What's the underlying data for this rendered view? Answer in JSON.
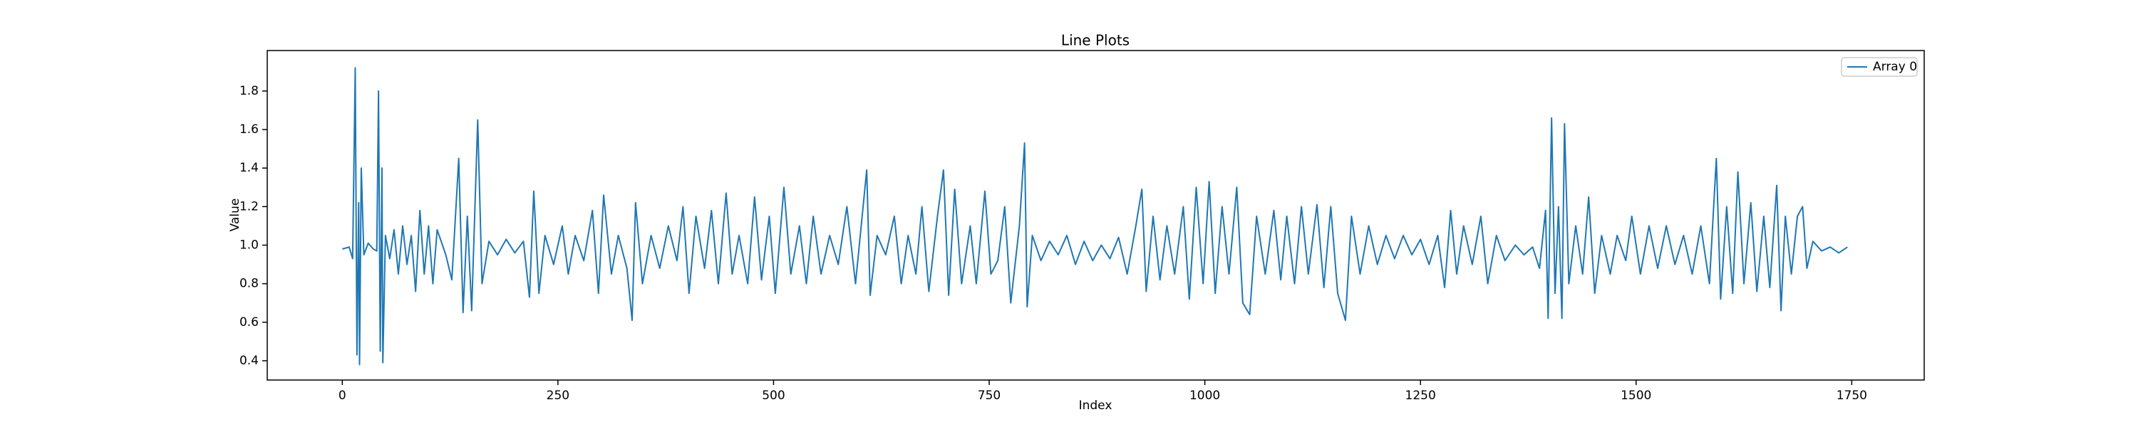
{
  "chart_data": {
    "type": "line",
    "title": "Line Plots",
    "x_label": "Index",
    "y_label": "Value",
    "legend": "upper right",
    "grid": false,
    "xlim": [
      -87,
      1834
    ],
    "ylim": [
      0.3,
      2.01
    ],
    "xticks": [
      0,
      250,
      500,
      750,
      1000,
      1250,
      1500,
      1750
    ],
    "yticks": [
      0.4,
      0.6,
      0.8,
      {
        "value": 1,
        "label": "1.0"
      },
      1.2,
      1.4,
      1.6,
      1.8
    ],
    "x": [
      0,
      8,
      12,
      15,
      17,
      19,
      20,
      22,
      25,
      30,
      36,
      40,
      42,
      44,
      46,
      47,
      50,
      55,
      60,
      65,
      70,
      75,
      80,
      85,
      90,
      95,
      100,
      105,
      110,
      120,
      127,
      135,
      140,
      145,
      150,
      157,
      162,
      170,
      180,
      190,
      200,
      210,
      217,
      222,
      228,
      235,
      245,
      255,
      262,
      270,
      280,
      290,
      297,
      303,
      312,
      320,
      330,
      336,
      340,
      348,
      358,
      368,
      378,
      388,
      395,
      402,
      410,
      420,
      428,
      436,
      445,
      452,
      460,
      470,
      478,
      486,
      495,
      502,
      512,
      520,
      530,
      538,
      546,
      555,
      565,
      575,
      585,
      595,
      608,
      612,
      620,
      630,
      640,
      648,
      656,
      665,
      672,
      680,
      690,
      697,
      703,
      710,
      718,
      728,
      735,
      745,
      752,
      760,
      768,
      775,
      785,
      791,
      794,
      800,
      810,
      820,
      830,
      840,
      850,
      860,
      870,
      880,
      890,
      900,
      910,
      920,
      927,
      932,
      940,
      948,
      956,
      965,
      975,
      982,
      990,
      998,
      1005,
      1012,
      1020,
      1028,
      1037,
      1044,
      1052,
      1060,
      1070,
      1080,
      1088,
      1095,
      1104,
      1112,
      1120,
      1130,
      1138,
      1146,
      1154,
      1163,
      1170,
      1180,
      1190,
      1200,
      1210,
      1220,
      1230,
      1240,
      1250,
      1260,
      1270,
      1278,
      1285,
      1292,
      1300,
      1310,
      1320,
      1328,
      1338,
      1348,
      1360,
      1370,
      1380,
      1388,
      1395,
      1398,
      1402,
      1406,
      1410,
      1414,
      1417,
      1422,
      1430,
      1438,
      1445,
      1452,
      1460,
      1470,
      1478,
      1488,
      1495,
      1505,
      1515,
      1525,
      1535,
      1545,
      1555,
      1565,
      1575,
      1585,
      1593,
      1598,
      1605,
      1612,
      1618,
      1625,
      1633,
      1640,
      1648,
      1655,
      1663,
      1668,
      1673,
      1680,
      1687,
      1693,
      1698,
      1705,
      1715,
      1725,
      1735,
      1745
    ],
    "series": [
      {
        "name": "Array 0",
        "color": "#1f77b4",
        "values": [
          0.98,
          0.99,
          0.93,
          1.92,
          0.43,
          1.22,
          0.38,
          1.4,
          0.95,
          1.01,
          0.98,
          0.97,
          1.8,
          0.45,
          1.4,
          0.39,
          1.05,
          0.93,
          1.08,
          0.85,
          1.1,
          0.9,
          1.05,
          0.76,
          1.18,
          0.85,
          1.1,
          0.8,
          1.08,
          0.95,
          0.82,
          1.45,
          0.65,
          1.15,
          0.66,
          1.65,
          0.8,
          1.02,
          0.95,
          1.03,
          0.96,
          1.02,
          0.73,
          1.28,
          0.75,
          1.05,
          0.9,
          1.1,
          0.85,
          1.05,
          0.92,
          1.18,
          0.75,
          1.26,
          0.85,
          1.05,
          0.88,
          0.61,
          1.22,
          0.8,
          1.05,
          0.88,
          1.1,
          0.92,
          1.2,
          0.75,
          1.15,
          0.88,
          1.18,
          0.8,
          1.27,
          0.85,
          1.05,
          0.8,
          1.25,
          0.82,
          1.15,
          0.75,
          1.3,
          0.85,
          1.1,
          0.8,
          1.15,
          0.85,
          1.05,
          0.9,
          1.2,
          0.8,
          1.39,
          0.74,
          1.05,
          0.95,
          1.15,
          0.8,
          1.05,
          0.85,
          1.2,
          0.76,
          1.15,
          1.39,
          0.74,
          1.29,
          0.8,
          1.1,
          0.8,
          1.28,
          0.85,
          0.92,
          1.2,
          0.7,
          1.1,
          1.53,
          0.68,
          1.05,
          0.92,
          1.02,
          0.95,
          1.05,
          0.9,
          1.02,
          0.92,
          1.0,
          0.93,
          1.04,
          0.85,
          1.1,
          1.29,
          0.76,
          1.15,
          0.82,
          1.1,
          0.85,
          1.2,
          0.72,
          1.3,
          0.8,
          1.33,
          0.75,
          1.2,
          0.85,
          1.3,
          0.7,
          0.64,
          1.15,
          0.85,
          1.18,
          0.82,
          1.15,
          0.8,
          1.2,
          0.85,
          1.21,
          0.78,
          1.2,
          0.75,
          0.61,
          1.15,
          0.85,
          1.1,
          0.9,
          1.05,
          0.93,
          1.05,
          0.95,
          1.03,
          0.9,
          1.05,
          0.78,
          1.18,
          0.85,
          1.1,
          0.9,
          1.15,
          0.8,
          1.05,
          0.92,
          1.0,
          0.95,
          0.99,
          0.88,
          1.18,
          0.62,
          1.66,
          0.75,
          1.2,
          0.62,
          1.63,
          0.8,
          1.1,
          0.85,
          1.25,
          0.75,
          1.05,
          0.85,
          1.05,
          0.92,
          1.15,
          0.85,
          1.1,
          0.88,
          1.1,
          0.9,
          1.05,
          0.85,
          1.1,
          0.8,
          1.45,
          0.72,
          1.2,
          0.75,
          1.38,
          0.8,
          1.22,
          0.76,
          1.15,
          0.78,
          1.31,
          0.66,
          1.15,
          0.85,
          1.15,
          1.2,
          0.88,
          1.02,
          0.97,
          0.99,
          0.96,
          0.99
        ]
      }
    ]
  }
}
